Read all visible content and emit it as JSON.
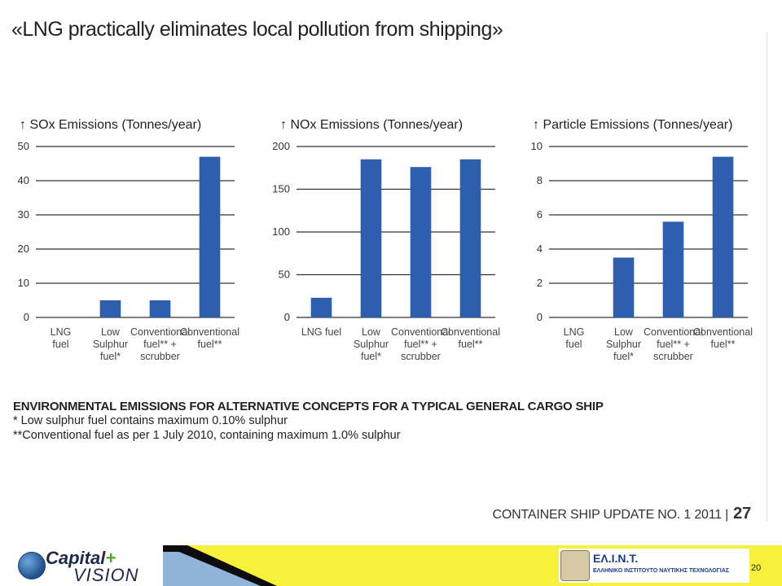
{
  "slide": {
    "title": "«LNG practically eliminates  local pollution from shipping»",
    "page_number": "20"
  },
  "notes": {
    "heading": "ENVIRONMENTAL EMISSIONS FOR ALTERNATIVE CONCEPTS FOR A TYPICAL GENERAL CARGO SHIP",
    "note1": "*  Low sulphur fuel contains maximum 0.10% sulphur",
    "note2": "**Conventional fuel as per 1 July 2010, containing maximum 1.0% sulphur"
  },
  "source": {
    "text": "CONTAINER SHIP UPDATE NO. 1 2011 |",
    "page": "27"
  },
  "footer": {
    "left_logo_line1": "Capital",
    "left_logo_plus": "+",
    "left_logo_line2": "VISION",
    "right_logo_title": "ΕΛ.Ι.Ν.Τ.",
    "right_logo_subtitle": "ΕΛΛΗΝΙΚΟ ΙΝΣΤΙΤΟΥΤΟ ΝΑΥΤΙΚΗΣ ΤΕΧΝΟΛΟΓΙΑΣ",
    "colors": {
      "band": "#f7f13b",
      "wedge_dark": "#0d0d0d",
      "wedge_blue": "#8fb3d9"
    }
  },
  "chart_data": [
    {
      "type": "bar",
      "title": "↑ SOx Emissions (Tonnes/year)",
      "categories": [
        [
          "LNG",
          "fuel"
        ],
        [
          "Low",
          "Sulphur",
          "fuel*"
        ],
        [
          "Conventional",
          "fuel** +",
          "scrubber"
        ],
        [
          "Conventional",
          "fuel**"
        ]
      ],
      "values": [
        0,
        5,
        5,
        47
      ],
      "yticks": [
        0,
        10,
        20,
        30,
        40,
        50
      ],
      "ylim": [
        0,
        50
      ],
      "grid": true,
      "color": "#2d5fae"
    },
    {
      "type": "bar",
      "title": "↑ NOx Emissions (Tonnes/year)",
      "categories": [
        [
          "LNG fuel"
        ],
        [
          "Low",
          "Sulphur",
          "fuel*"
        ],
        [
          "Conventional",
          "fuel** +",
          "scrubber"
        ],
        [
          "Conventional",
          "fuel**"
        ]
      ],
      "values": [
        23,
        185,
        176,
        185
      ],
      "yticks": [
        0,
        50,
        100,
        150,
        200
      ],
      "ylim": [
        0,
        200
      ],
      "grid": true,
      "color": "#2d5fae"
    },
    {
      "type": "bar",
      "title": "↑ Particle Emissions (Tonnes/year)",
      "categories": [
        [
          "LNG",
          "fuel"
        ],
        [
          "Low",
          "Sulphur",
          "fuel*"
        ],
        [
          "Conventional",
          "fuel** +",
          "scrubber"
        ],
        [
          "Conventional",
          "fuel**"
        ]
      ],
      "values": [
        0,
        3.5,
        5.6,
        9.4
      ],
      "yticks": [
        0,
        2,
        4,
        6,
        8,
        10
      ],
      "ylim": [
        0,
        10
      ],
      "grid": true,
      "color": "#2d5fae"
    }
  ]
}
